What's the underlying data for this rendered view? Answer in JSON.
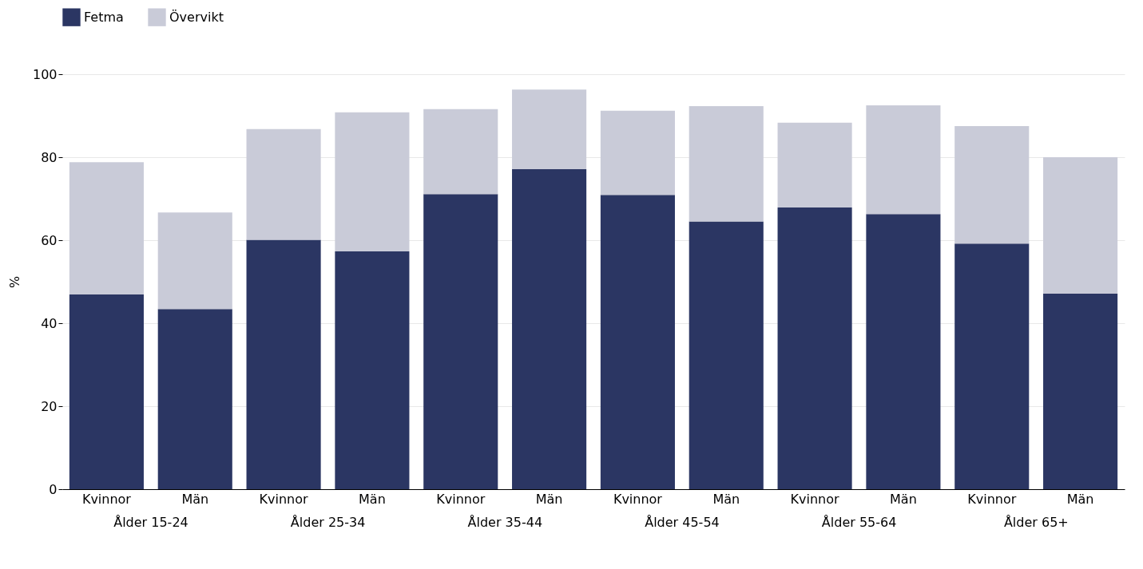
{
  "chart_data": {
    "type": "bar",
    "stacked": true,
    "ylabel": "%",
    "categories": [
      "Kvinnor",
      "Män",
      "Kvinnor",
      "Män",
      "Kvinnor",
      "Män",
      "Kvinnor",
      "Män",
      "Kvinnor",
      "Män",
      "Kvinnor",
      "Män"
    ],
    "series": [
      {
        "name": "Fetma",
        "color": "#2b3663",
        "values": [
          46.9,
          43.4,
          60.1,
          57.3,
          71.1,
          77.1,
          70.9,
          64.5,
          67.9,
          66.3,
          59.2,
          47.1
        ]
      },
      {
        "name": "Övervikt",
        "color": "#c9cbd8",
        "values": [
          31.9,
          23.3,
          26.7,
          33.5,
          20.5,
          19.2,
          20.3,
          27.8,
          20.4,
          26.2,
          28.3,
          32.9
        ]
      }
    ],
    "annotations": [
      "Ålder 15-24",
      "Ålder 25-34",
      "Ålder 35-44",
      "Ålder 45-54",
      "Ålder 55-64",
      "Ålder 65+"
    ],
    "ylim": [
      0,
      100
    ],
    "yticks": [
      0,
      20,
      40,
      60,
      80,
      100
    ],
    "grid": "y",
    "legend": "top left"
  }
}
